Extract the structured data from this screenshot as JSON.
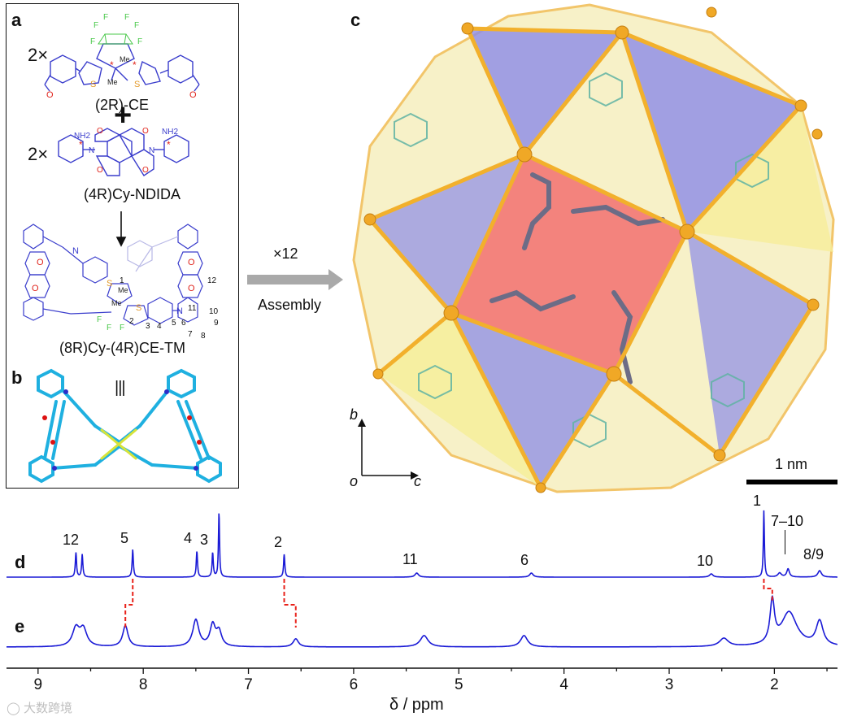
{
  "panel_a": {
    "letter": "a",
    "mult1": "2×",
    "compound1": "(2R)-CE",
    "plus": "+",
    "mult2": "2×",
    "compound2": "(4R)Cy-NDIDA",
    "product": "(8R)Cy-(4R)CE-TM",
    "atom_F": "F",
    "atom_S": "S",
    "atom_O": "O",
    "atom_N": "N",
    "me": "Me",
    "nh2": "NH2",
    "numbers": [
      "1",
      "2",
      "3",
      "4",
      "5",
      "6",
      "7",
      "8",
      "9",
      "10",
      "11",
      "12"
    ]
  },
  "panel_b": {
    "letter": "b",
    "equiv": "|||"
  },
  "arrow": {
    "mult": "×12",
    "label": "Assembly"
  },
  "panel_c": {
    "letter": "c",
    "axis_b": "b",
    "axis_o": "o",
    "axis_c": "c",
    "scale": "1 nm"
  },
  "panel_d": {
    "letter": "d",
    "peak_labels": [
      "12",
      "5",
      "4",
      "3",
      "2",
      "11",
      "6",
      "10",
      "1",
      "7–10",
      "8/9"
    ]
  },
  "panel_e": {
    "letter": "e"
  },
  "axis": {
    "ticks": [
      "9",
      "8",
      "7",
      "6",
      "5",
      "4",
      "3",
      "2"
    ],
    "xlabel": "δ / ppm"
  },
  "watermark": "大数跨境",
  "colors": {
    "spectrum": "#1a1ad6",
    "link": "#e8211a",
    "gold": "#f0a826",
    "red": "#f25b5b",
    "blue": "#6f6ee0",
    "yellow": "#f6ee9a",
    "teal": "#5fb3a3",
    "cyan": "#2aa9d8"
  },
  "chart_data": {
    "type": "line",
    "xlabel": "δ / ppm",
    "xlim": [
      9.3,
      1.4
    ],
    "series": [
      {
        "name": "d",
        "peaks_ppm": [
          8.64,
          8.58,
          8.1,
          7.49,
          7.34,
          7.28,
          6.66,
          5.4,
          4.31,
          2.6,
          2.1,
          1.95,
          1.87,
          1.57
        ]
      },
      {
        "name": "e",
        "peaks_ppm": [
          8.64,
          8.57,
          8.17,
          7.5,
          7.34,
          7.28,
          6.55,
          5.33,
          4.38,
          2.48,
          2.02,
          1.86,
          1.57
        ]
      }
    ]
  }
}
